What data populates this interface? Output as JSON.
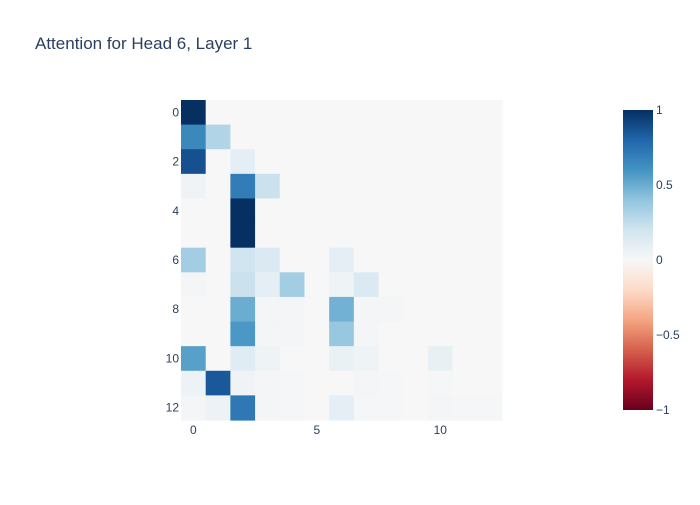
{
  "chart_data": {
    "type": "heatmap",
    "title": "Attention for Head 6, Layer 1",
    "xlabel": "",
    "ylabel": "",
    "x_tick_labels": [
      "0",
      "5",
      "10"
    ],
    "x_tick_values": [
      0,
      5,
      10
    ],
    "y_tick_labels": [
      "0",
      "2",
      "4",
      "6",
      "8",
      "10",
      "12"
    ],
    "y_tick_values": [
      0,
      2,
      4,
      6,
      8,
      10,
      12
    ],
    "n_rows": 13,
    "n_cols": 13,
    "zmin": -1,
    "zmax": 1,
    "colorscale": "RdBu",
    "colorbar_ticks": [
      {
        "value": 1,
        "label": "1"
      },
      {
        "value": 0.5,
        "label": "0.5"
      },
      {
        "value": 0,
        "label": "0"
      },
      {
        "value": -0.5,
        "label": "−0.5"
      },
      {
        "value": -1,
        "label": "−1"
      }
    ],
    "values": [
      [
        1.0,
        0,
        0,
        0,
        0,
        0,
        0,
        0,
        0,
        0,
        0,
        0,
        0
      ],
      [
        0.65,
        0.3,
        0,
        0,
        0,
        0,
        0,
        0,
        0,
        0,
        0,
        0,
        0
      ],
      [
        0.88,
        0,
        0.1,
        0,
        0,
        0,
        0,
        0,
        0,
        0,
        0,
        0,
        0
      ],
      [
        0.04,
        0,
        0.7,
        0.22,
        0,
        0,
        0,
        0,
        0,
        0,
        0,
        0,
        0
      ],
      [
        0,
        0,
        1.0,
        0,
        0,
        0,
        0,
        0,
        0,
        0,
        0,
        0,
        0
      ],
      [
        0,
        0,
        1.0,
        0,
        0,
        0,
        0,
        0,
        0,
        0,
        0,
        0,
        0
      ],
      [
        0.35,
        0,
        0.2,
        0.15,
        0,
        0,
        0.1,
        0,
        0,
        0,
        0,
        0,
        0
      ],
      [
        0.02,
        0,
        0.22,
        0.1,
        0.35,
        0,
        0.05,
        0.15,
        0,
        0,
        0,
        0,
        0
      ],
      [
        0,
        0,
        0.5,
        0.02,
        0.02,
        0,
        0.48,
        0.02,
        0.02,
        0,
        0,
        0,
        0
      ],
      [
        0,
        0,
        0.58,
        0.02,
        0.02,
        0,
        0.38,
        0.02,
        0,
        0,
        0,
        0,
        0
      ],
      [
        0.55,
        0,
        0.12,
        0.05,
        0,
        0,
        0.07,
        0.05,
        0,
        0,
        0.08,
        0,
        0
      ],
      [
        0.06,
        0.85,
        0.04,
        0.02,
        0.01,
        0,
        0,
        0.02,
        0.01,
        0,
        0.01,
        0,
        0
      ],
      [
        0.02,
        0.06,
        0.72,
        0.02,
        0.01,
        0,
        0.1,
        0.01,
        0.01,
        0,
        0.02,
        0.01,
        0.01
      ]
    ]
  }
}
